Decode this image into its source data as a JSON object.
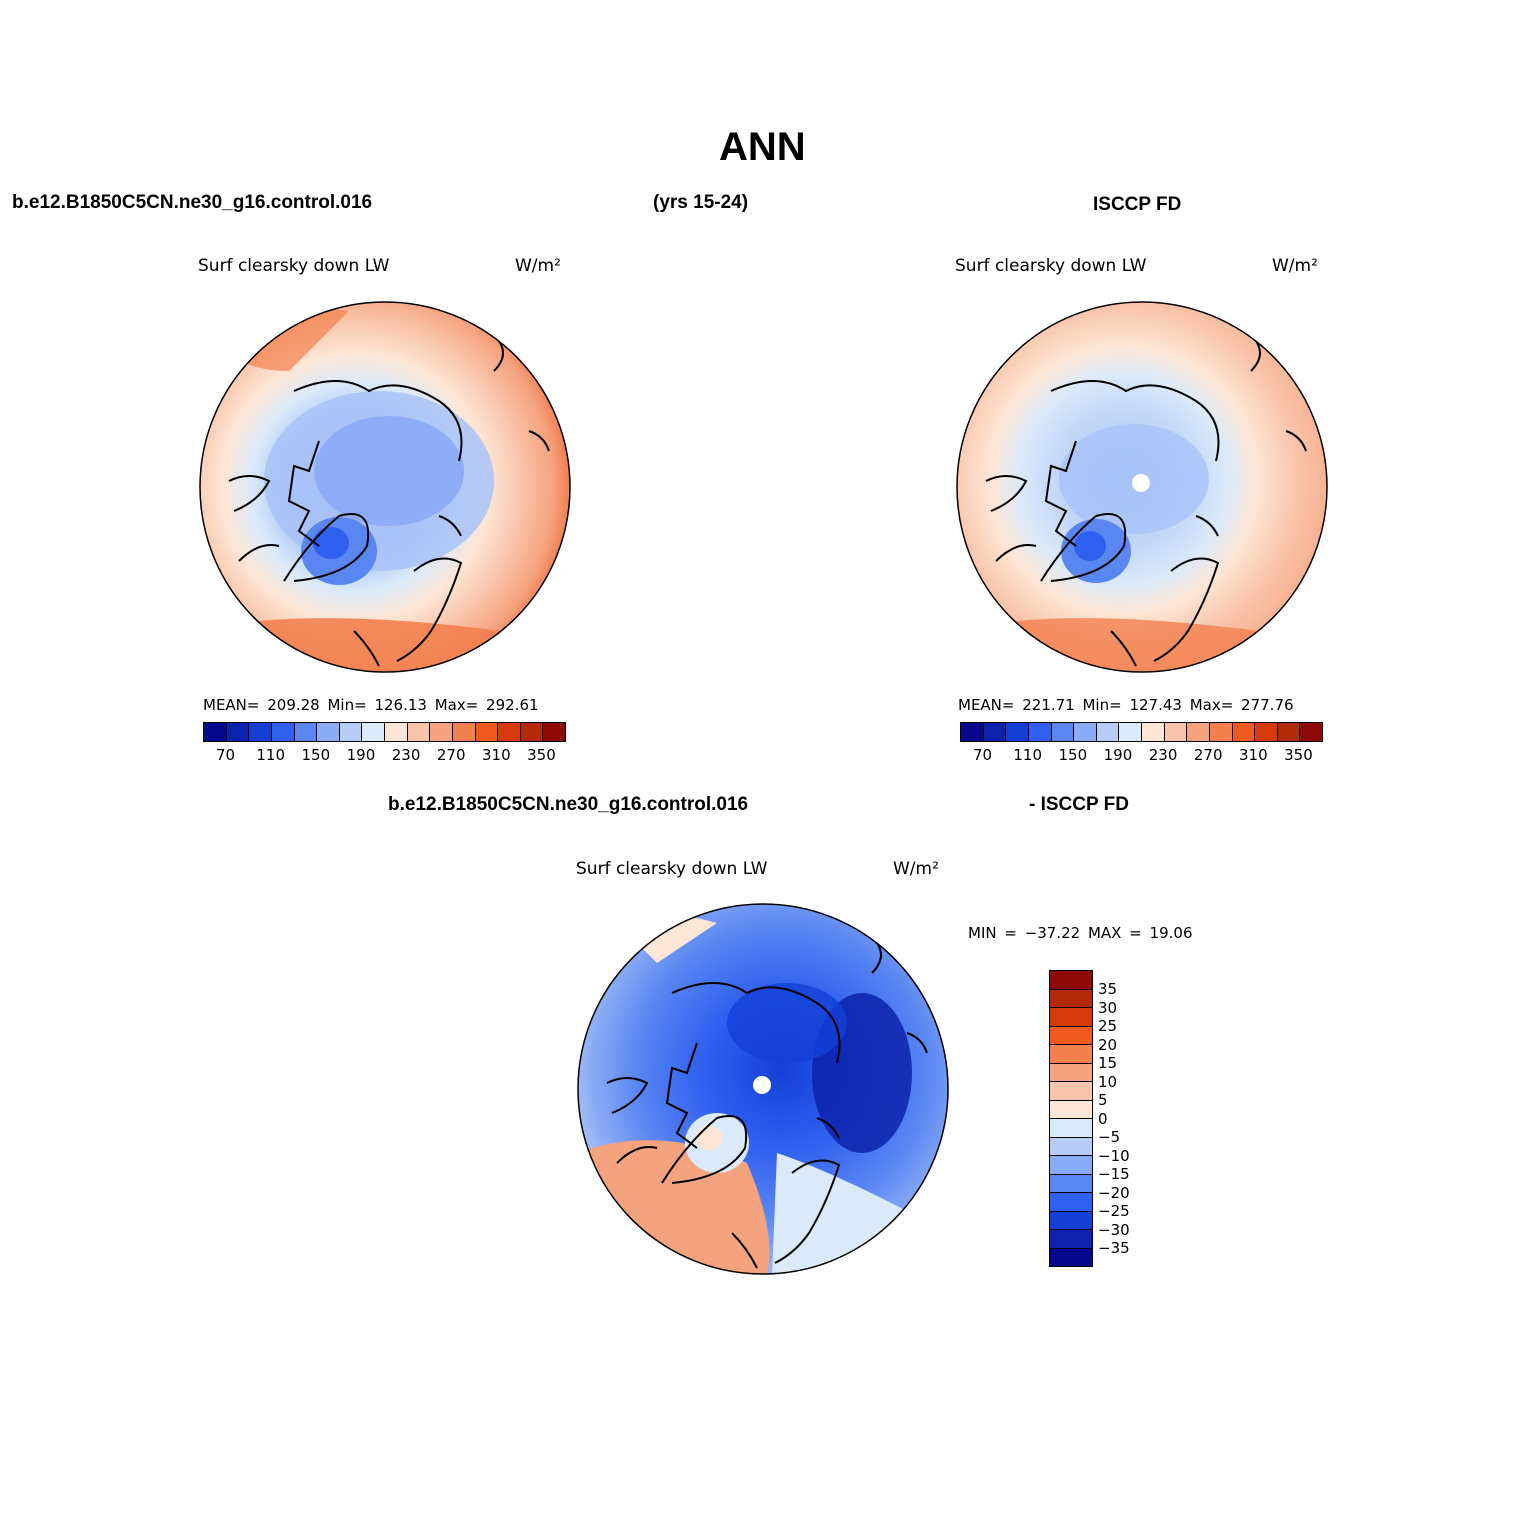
{
  "header": {
    "title": "ANN",
    "case_name": "b.e12.B1850C5CN.ne30_g16.control.016",
    "years": "(yrs 15-24)",
    "obs_name": "ISCCP FD",
    "diff_case": "b.e12.B1850C5CN.ne30_g16.control.016",
    "diff_obs": "- ISCCP FD"
  },
  "panels": {
    "model": {
      "variable": "Surf clearsky down LW",
      "units": "W/m²",
      "stats": "MEAN= 209.28   Min= 126.13   Max= 292.61"
    },
    "obs": {
      "variable": "Surf clearsky down LW",
      "units": "W/m²",
      "stats": "MEAN= 221.71   Min= 127.43   Max= 277.76"
    },
    "diff": {
      "variable": "Surf clearsky down LW",
      "units": "W/m²",
      "stats": "MIN = −37.22  MAX =   19.06"
    }
  },
  "colorbar_abs": {
    "colors": [
      "#08088c",
      "#0c22ad",
      "#1440d6",
      "#2f60f0",
      "#5a86f2",
      "#8aabf5",
      "#b7cdf8",
      "#daeafa",
      "#fde6d6",
      "#f9c5aa",
      "#f5a27e",
      "#f3804f",
      "#ee5a22",
      "#d63a0c",
      "#b22a0a",
      "#8c0b08"
    ],
    "labels": [
      "70",
      "110",
      "150",
      "190",
      "230",
      "270",
      "310",
      "350"
    ]
  },
  "colorbar_diff": {
    "colors": [
      "#8c0b08",
      "#b22a0a",
      "#d63a0c",
      "#ee5a22",
      "#f3804f",
      "#f5a27e",
      "#f9c5aa",
      "#fde6d6",
      "#daeafa",
      "#b7cdf8",
      "#8aabf5",
      "#5a86f2",
      "#2f60f0",
      "#1440d6",
      "#0c22ad",
      "#08088c"
    ],
    "labels": [
      "35",
      "30",
      "25",
      "20",
      "15",
      "10",
      "5",
      "0",
      "−5",
      "−10",
      "−15",
      "−20",
      "−25",
      "−30",
      "−35"
    ]
  }
}
